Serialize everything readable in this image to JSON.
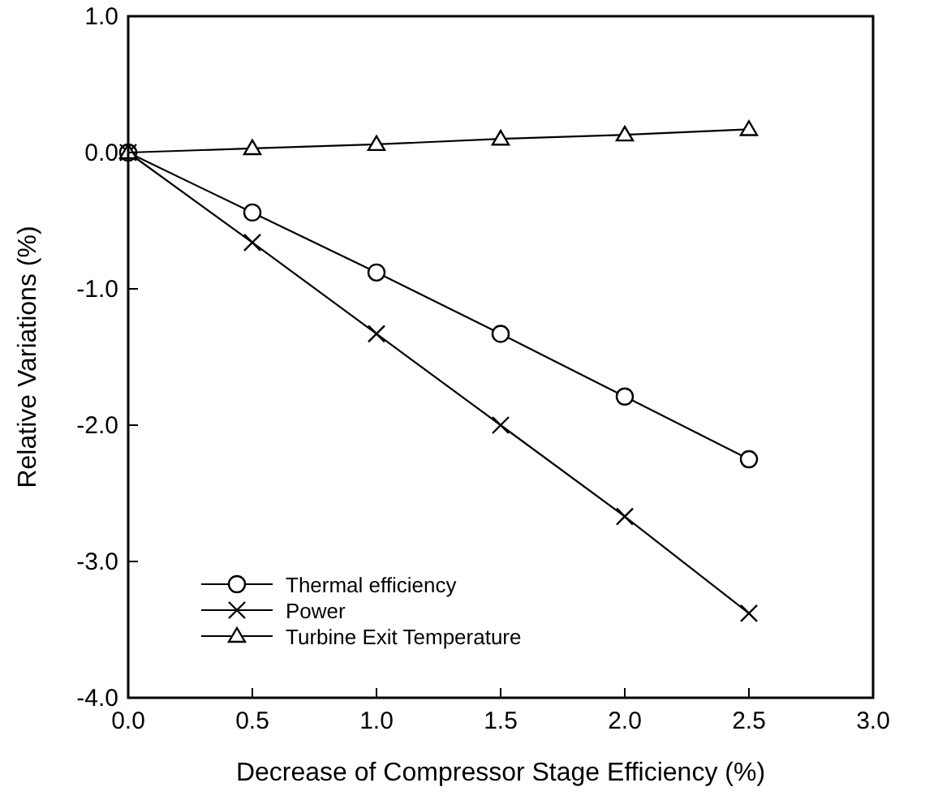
{
  "chart_data": {
    "type": "line",
    "xlabel": "Decrease of Compressor Stage Efficiency (%)",
    "ylabel": "Relative Variations (%)",
    "x": [
      0,
      0.5,
      1,
      1.5,
      2,
      2.5
    ],
    "series": [
      {
        "name": "Thermal efficiency",
        "color": "#000000",
        "marker": "circle",
        "values": [
          0,
          -0.44,
          -0.88,
          -1.33,
          -1.79,
          -2.25
        ]
      },
      {
        "name": "Power",
        "color": "#000000",
        "marker": "cross",
        "values": [
          0,
          -0.66,
          -1.33,
          -2.0,
          -2.67,
          -3.38
        ]
      },
      {
        "name": "Turbine Exit Temperature",
        "color": "#000000",
        "marker": "triangle",
        "values": [
          0,
          0.03,
          0.06,
          0.1,
          0.13,
          0.17
        ]
      }
    ],
    "xlim": [
      0,
      3
    ],
    "ylim": [
      -4,
      1
    ],
    "xticks": [
      {
        "value": 0,
        "label": "0.0"
      },
      {
        "value": 0.5,
        "label": "0.5"
      },
      {
        "value": 1,
        "label": "1.0"
      },
      {
        "value": 1.5,
        "label": "1.5"
      },
      {
        "value": 2,
        "label": "2.0"
      },
      {
        "value": 2.5,
        "label": "2.5"
      },
      {
        "value": 3,
        "label": "3.0"
      }
    ],
    "yticks": [
      {
        "value": -4,
        "label": "-4.0"
      },
      {
        "value": -3,
        "label": "-3.0"
      },
      {
        "value": -2,
        "label": "-2.0"
      },
      {
        "value": -1,
        "label": "-1.0"
      },
      {
        "value": 0,
        "label": "0.0"
      },
      {
        "value": 1,
        "label": "1.0"
      }
    ],
    "legend": "bottom left",
    "grid": false,
    "line_style": "solid"
  }
}
